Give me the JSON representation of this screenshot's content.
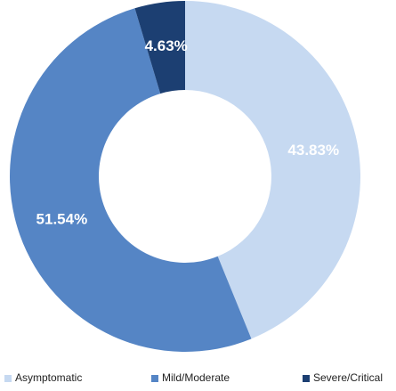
{
  "chart_data": {
    "type": "pie",
    "categories": [
      "Asymptomatic",
      "Mild/Moderate",
      "Severe/Critical"
    ],
    "values": [
      43.83,
      51.54,
      4.63
    ],
    "value_labels": [
      "43.83%",
      "51.54%",
      "4.63%"
    ],
    "colors": [
      "#c6d9f1",
      "#5585c5",
      "#1c3f72"
    ],
    "legend": "bottom"
  }
}
